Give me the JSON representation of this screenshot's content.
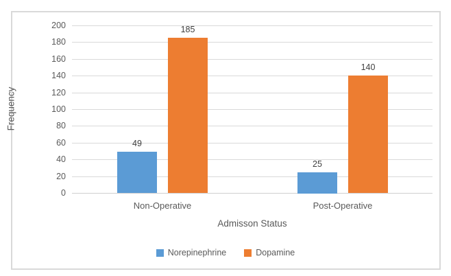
{
  "chart_data": {
    "type": "bar",
    "title": "",
    "categories": [
      "Non-Operative",
      "Post-Operative"
    ],
    "series": [
      {
        "name": "Norepinephrine",
        "color": "#5B9BD5",
        "values": [
          49,
          25
        ]
      },
      {
        "name": "Dopamine",
        "color": "#ED7D31",
        "values": [
          185,
          140
        ]
      }
    ],
    "data_labels": [
      [
        "49",
        "25"
      ],
      [
        "185",
        "140"
      ]
    ],
    "xlabel": "Admisson Status",
    "ylabel": "Frequency",
    "ylim": [
      0,
      200
    ],
    "ytick_step": 20,
    "yticks": [
      0,
      20,
      40,
      60,
      80,
      100,
      120,
      140,
      160,
      180,
      200
    ],
    "grid": true,
    "legend_position": "bottom",
    "legend_entries": [
      "Norepinephrine",
      "Dopamine"
    ]
  },
  "colors": {
    "series_blue": "#5B9BD5",
    "series_orange": "#ED7D31",
    "gridline": "#D9D9D9",
    "frame_border": "#D9D9D9",
    "axis_text": "#595959",
    "data_label_text": "#404040",
    "background": "#FFFFFF"
  }
}
